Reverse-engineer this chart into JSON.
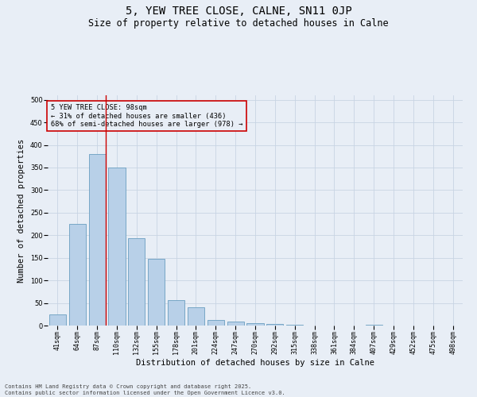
{
  "title": "5, YEW TREE CLOSE, CALNE, SN11 0JP",
  "subtitle": "Size of property relative to detached houses in Calne",
  "xlabel": "Distribution of detached houses by size in Calne",
  "ylabel": "Number of detached properties",
  "categories": [
    "41sqm",
    "64sqm",
    "87sqm",
    "110sqm",
    "132sqm",
    "155sqm",
    "178sqm",
    "201sqm",
    "224sqm",
    "247sqm",
    "270sqm",
    "292sqm",
    "315sqm",
    "338sqm",
    "361sqm",
    "384sqm",
    "407sqm",
    "429sqm",
    "452sqm",
    "475sqm",
    "498sqm"
  ],
  "values": [
    25,
    225,
    380,
    350,
    193,
    147,
    57,
    41,
    12,
    8,
    5,
    3,
    1,
    0,
    0,
    0,
    1,
    0,
    0,
    0,
    0
  ],
  "bar_color": "#b8d0e8",
  "bar_edge_color": "#6a9ec0",
  "grid_color": "#c8d4e4",
  "background_color": "#e8eef6",
  "vline_color": "#cc0000",
  "annotation_text": "5 YEW TREE CLOSE: 98sqm\n← 31% of detached houses are smaller (436)\n68% of semi-detached houses are larger (978) →",
  "annotation_box_color": "#cc0000",
  "ylim": [
    0,
    510
  ],
  "yticks": [
    0,
    50,
    100,
    150,
    200,
    250,
    300,
    350,
    400,
    450,
    500
  ],
  "footnote": "Contains HM Land Registry data © Crown copyright and database right 2025.\nContains public sector information licensed under the Open Government Licence v3.0.",
  "title_fontsize": 10,
  "subtitle_fontsize": 8.5,
  "tick_fontsize": 6,
  "ylabel_fontsize": 7.5,
  "xlabel_fontsize": 7.5,
  "annotation_fontsize": 6.2,
  "footnote_fontsize": 5
}
